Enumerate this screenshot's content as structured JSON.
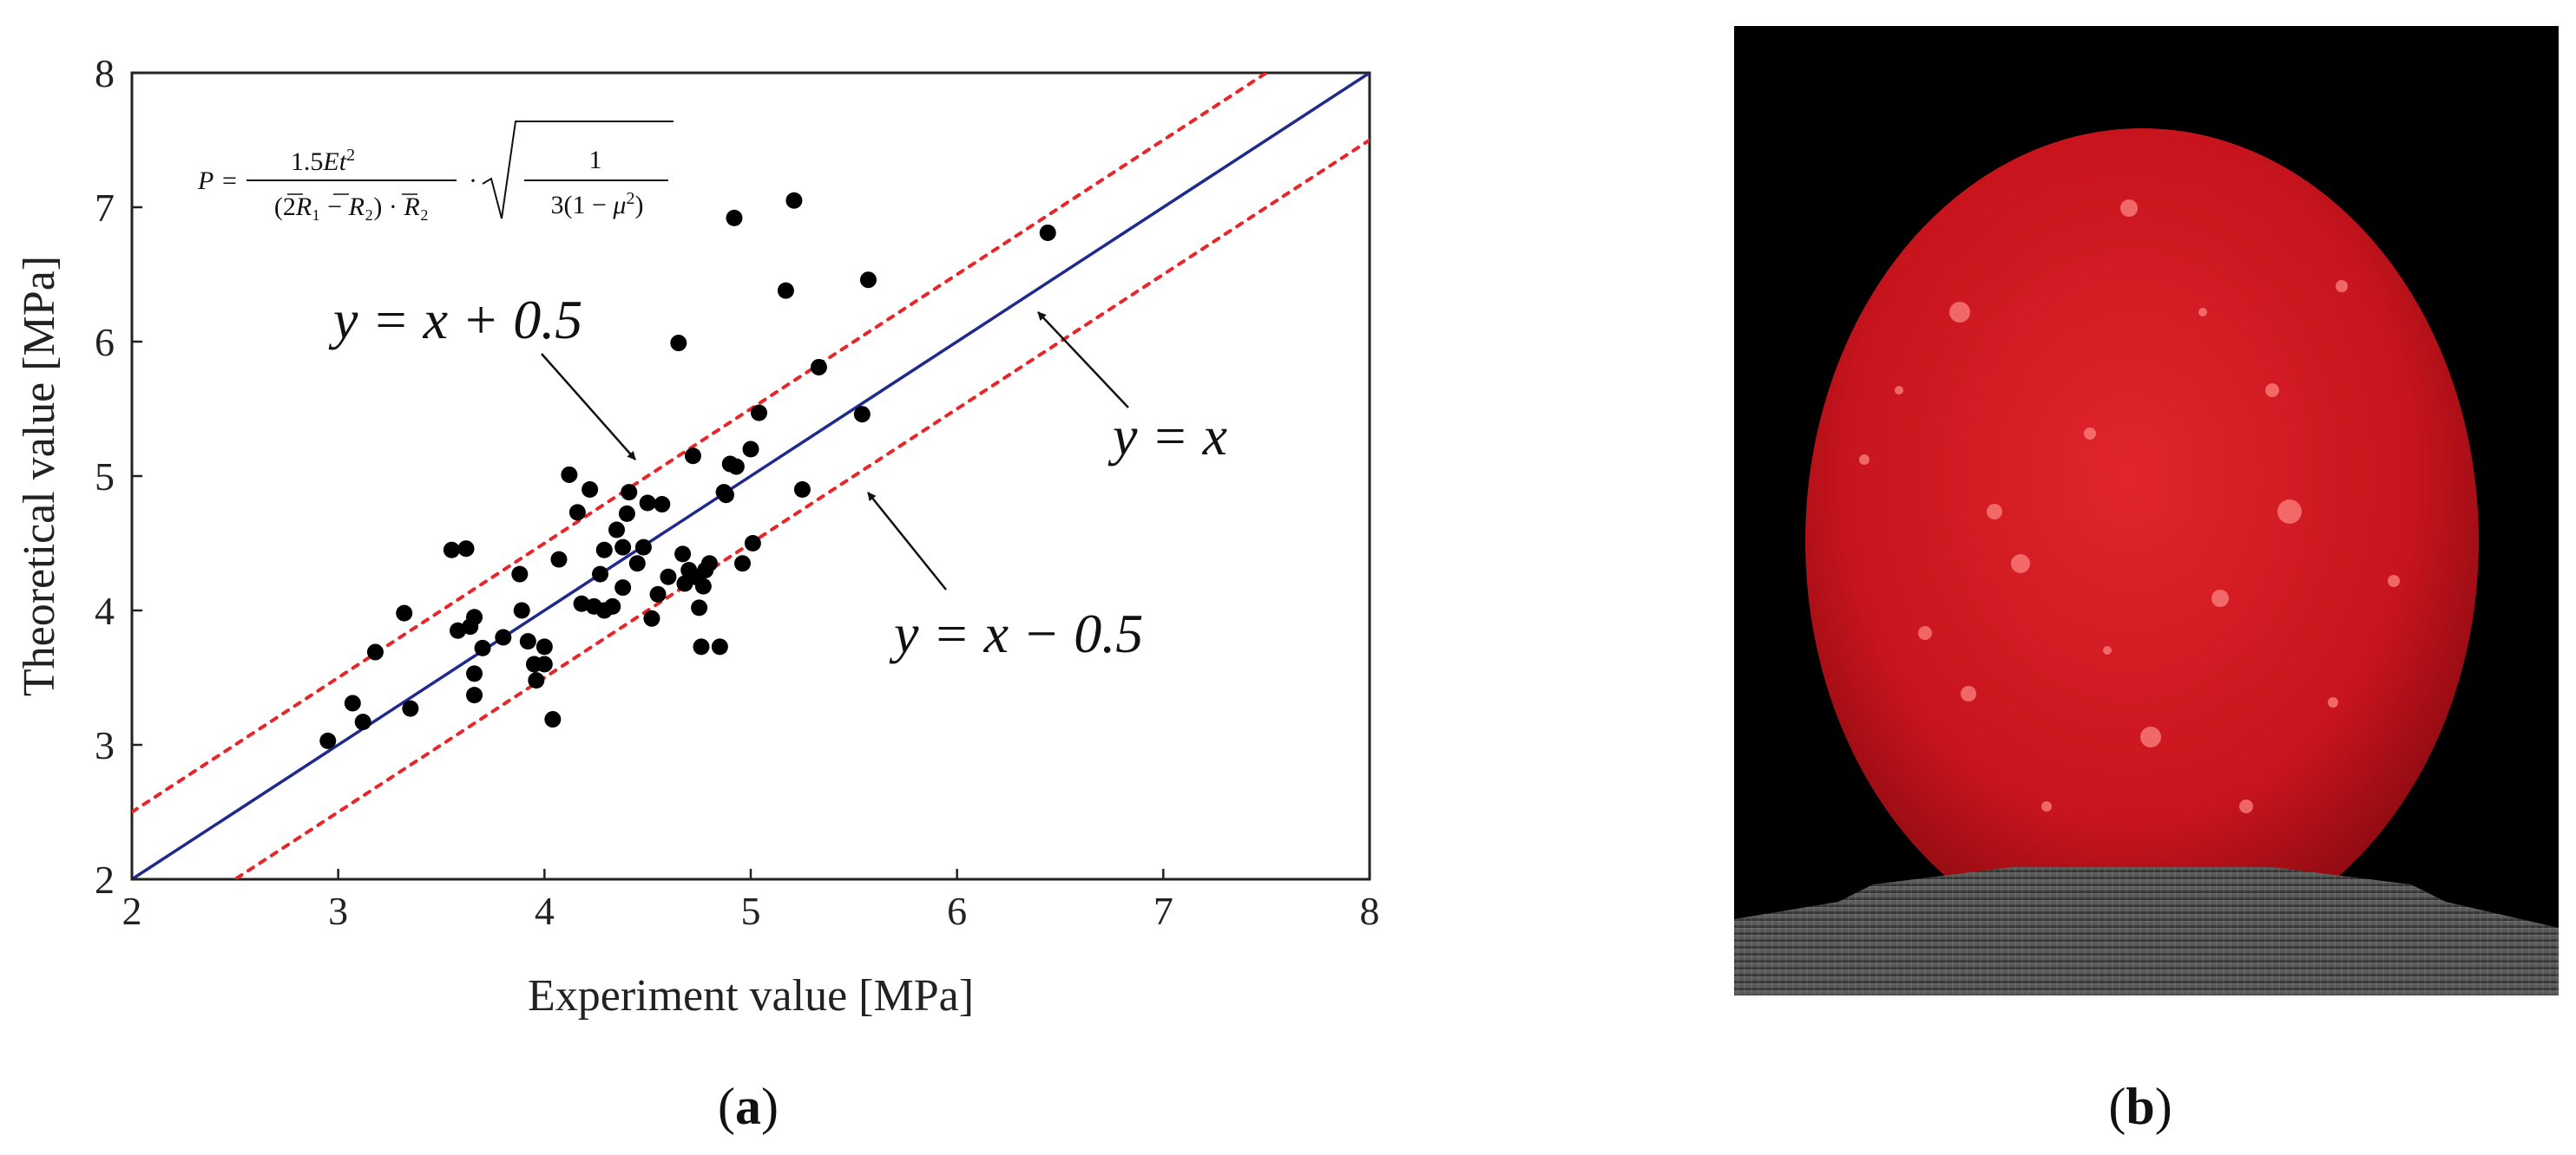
{
  "panel_a": {
    "label": "a"
  },
  "panel_b": {
    "label": "b"
  },
  "chart_data": {
    "type": "scatter",
    "title": "",
    "xlabel": "Experiment value [MPa]",
    "ylabel": "Theoretical value [MPa]",
    "xlim": [
      2,
      8
    ],
    "ylim": [
      2,
      8
    ],
    "xticks": [
      2,
      3,
      4,
      5,
      6,
      7,
      8
    ],
    "yticks": [
      2,
      3,
      4,
      5,
      6,
      7,
      8
    ],
    "grid": false,
    "formula_text": "P = 1.5Et² / ((2R̄₁ − R̄₂)·R̄₂) · √(1 / 3(1 − μ²))",
    "lines": [
      {
        "label": "y = x",
        "slope": 1,
        "intercept": 0,
        "color": "#1f2a8c",
        "style": "solid"
      },
      {
        "label": "y = x + 0.5",
        "slope": 1,
        "intercept": 0.5,
        "color": "#e8262a",
        "style": "dotted"
      },
      {
        "label": "y = x − 0.5",
        "slope": 1,
        "intercept": -0.5,
        "color": "#e8262a",
        "style": "dotted"
      }
    ],
    "points": [
      [
        2.95,
        3.03
      ],
      [
        3.07,
        3.31
      ],
      [
        3.12,
        3.17
      ],
      [
        3.18,
        3.69
      ],
      [
        3.32,
        3.98
      ],
      [
        3.35,
        3.27
      ],
      [
        3.55,
        4.45
      ],
      [
        3.58,
        3.85
      ],
      [
        3.62,
        4.46
      ],
      [
        3.64,
        3.88
      ],
      [
        3.66,
        3.95
      ],
      [
        3.66,
        3.53
      ],
      [
        3.66,
        3.37
      ],
      [
        3.7,
        3.72
      ],
      [
        3.8,
        3.8
      ],
      [
        3.88,
        4.27
      ],
      [
        3.89,
        4.0
      ],
      [
        3.92,
        3.77
      ],
      [
        3.95,
        3.6
      ],
      [
        3.96,
        3.48
      ],
      [
        4.0,
        3.73
      ],
      [
        4.0,
        3.6
      ],
      [
        4.04,
        3.19
      ],
      [
        4.07,
        4.38
      ],
      [
        4.12,
        5.01
      ],
      [
        4.16,
        4.73
      ],
      [
        4.18,
        4.05
      ],
      [
        4.22,
        4.9
      ],
      [
        4.24,
        4.03
      ],
      [
        4.27,
        4.27
      ],
      [
        4.29,
        4.0
      ],
      [
        4.29,
        4.45
      ],
      [
        4.33,
        4.03
      ],
      [
        4.35,
        4.6
      ],
      [
        4.38,
        4.17
      ],
      [
        4.38,
        4.47
      ],
      [
        4.4,
        4.72
      ],
      [
        4.41,
        4.88
      ],
      [
        4.45,
        4.35
      ],
      [
        4.48,
        4.47
      ],
      [
        4.5,
        4.8
      ],
      [
        4.52,
        3.94
      ],
      [
        4.55,
        4.12
      ],
      [
        4.57,
        4.79
      ],
      [
        4.6,
        4.25
      ],
      [
        4.65,
        5.99
      ],
      [
        4.67,
        4.42
      ],
      [
        4.68,
        4.2
      ],
      [
        4.7,
        4.3
      ],
      [
        4.72,
        5.15
      ],
      [
        4.73,
        4.25
      ],
      [
        4.75,
        4.02
      ],
      [
        4.76,
        3.73
      ],
      [
        4.77,
        4.18
      ],
      [
        4.78,
        4.3
      ],
      [
        4.8,
        4.35
      ],
      [
        4.85,
        3.73
      ],
      [
        4.87,
        4.88
      ],
      [
        4.88,
        4.86
      ],
      [
        4.9,
        5.09
      ],
      [
        4.92,
        6.92
      ],
      [
        4.93,
        5.07
      ],
      [
        4.96,
        4.35
      ],
      [
        5.0,
        5.2
      ],
      [
        5.01,
        4.5
      ],
      [
        5.04,
        5.47
      ],
      [
        5.17,
        6.38
      ],
      [
        5.21,
        7.05
      ],
      [
        5.25,
        4.9
      ],
      [
        5.33,
        5.81
      ],
      [
        5.54,
        5.46
      ],
      [
        5.57,
        6.46
      ],
      [
        6.44,
        6.81
      ]
    ]
  }
}
